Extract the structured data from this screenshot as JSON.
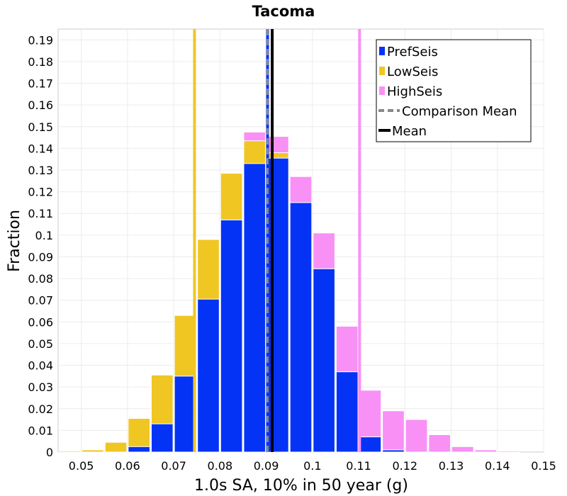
{
  "chart_data": {
    "type": "bar",
    "title": "Tacoma",
    "xlabel": "1.0s SA, 10% in 50 year (g)",
    "ylabel": "Fraction",
    "xlim": [
      0.045,
      0.15
    ],
    "ylim": [
      0,
      0.195
    ],
    "xticks": [
      "0.05",
      "0.06",
      "0.07",
      "0.08",
      "0.09",
      "0.1",
      "0.11",
      "0.12",
      "0.13",
      "0.14",
      "0.15"
    ],
    "yticks": [
      "0",
      "0.01",
      "0.02",
      "0.03",
      "0.04",
      "0.05",
      "0.06",
      "0.07",
      "0.08",
      "0.09",
      "0.1",
      "0.11",
      "0.12",
      "0.13",
      "0.14",
      "0.15",
      "0.16",
      "0.17",
      "0.18",
      "0.19"
    ],
    "bin_width": 0.005,
    "bins": [
      0.0475,
      0.0525,
      0.0575,
      0.0625,
      0.0675,
      0.0725,
      0.0775,
      0.0825,
      0.0875,
      0.0925,
      0.0975,
      0.1025,
      0.1075,
      0.1125,
      0.1175,
      0.1225,
      0.1275,
      0.1325,
      0.1375,
      0.1425
    ],
    "series": [
      {
        "name": "HighSeis",
        "color": "#f990f6",
        "values": [
          0,
          0,
          0,
          0.0025,
          0.013,
          0.035,
          0.0705,
          0.1075,
          0.1475,
          0.1455,
          0.127,
          0.101,
          0.058,
          0.0285,
          0.019,
          0.015,
          0.008,
          0.0025,
          0.001,
          0.0005
        ]
      },
      {
        "name": "LowSeis",
        "color": "#f0c623",
        "values": [
          0.0005,
          0.001,
          0.0045,
          0.0155,
          0.0355,
          0.063,
          0.098,
          0.1285,
          0.1435,
          0.138,
          0.115,
          0.0845,
          0.037,
          0.007,
          0.001,
          0,
          0,
          0,
          0,
          0
        ]
      },
      {
        "name": "PrefSeis",
        "color": "#0433f5",
        "values": [
          0,
          0,
          0,
          0.0025,
          0.013,
          0.035,
          0.0705,
          0.107,
          0.133,
          0.1355,
          0.115,
          0.0845,
          0.037,
          0.007,
          0.001,
          0,
          0,
          0,
          0,
          0
        ]
      }
    ],
    "vlines": [
      {
        "name": "LowSeis",
        "x": 0.0745,
        "color": "#f0c623",
        "style": "solid"
      },
      {
        "name": "PrefSeis",
        "x": 0.0903,
        "color": "#0433f5",
        "style": "solid"
      },
      {
        "name": "Comparison Mean",
        "x": 0.0903,
        "color": "#888888",
        "style": "dashed"
      },
      {
        "name": "Mean",
        "x": 0.0913,
        "color": "#000000",
        "style": "solid"
      },
      {
        "name": "HighSeis",
        "x": 0.1102,
        "color": "#f990f6",
        "style": "solid"
      }
    ],
    "legend": {
      "position": "top-right",
      "entries": [
        {
          "label": "PrefSeis",
          "color": "#0433f5",
          "kind": "box"
        },
        {
          "label": "LowSeis",
          "color": "#f0c623",
          "kind": "box"
        },
        {
          "label": "HighSeis",
          "color": "#f990f6",
          "kind": "box"
        },
        {
          "label": "Comparison Mean",
          "color": "#888888",
          "kind": "dashed"
        },
        {
          "label": "Mean",
          "color": "#000000",
          "kind": "line"
        }
      ]
    },
    "grid": true
  }
}
